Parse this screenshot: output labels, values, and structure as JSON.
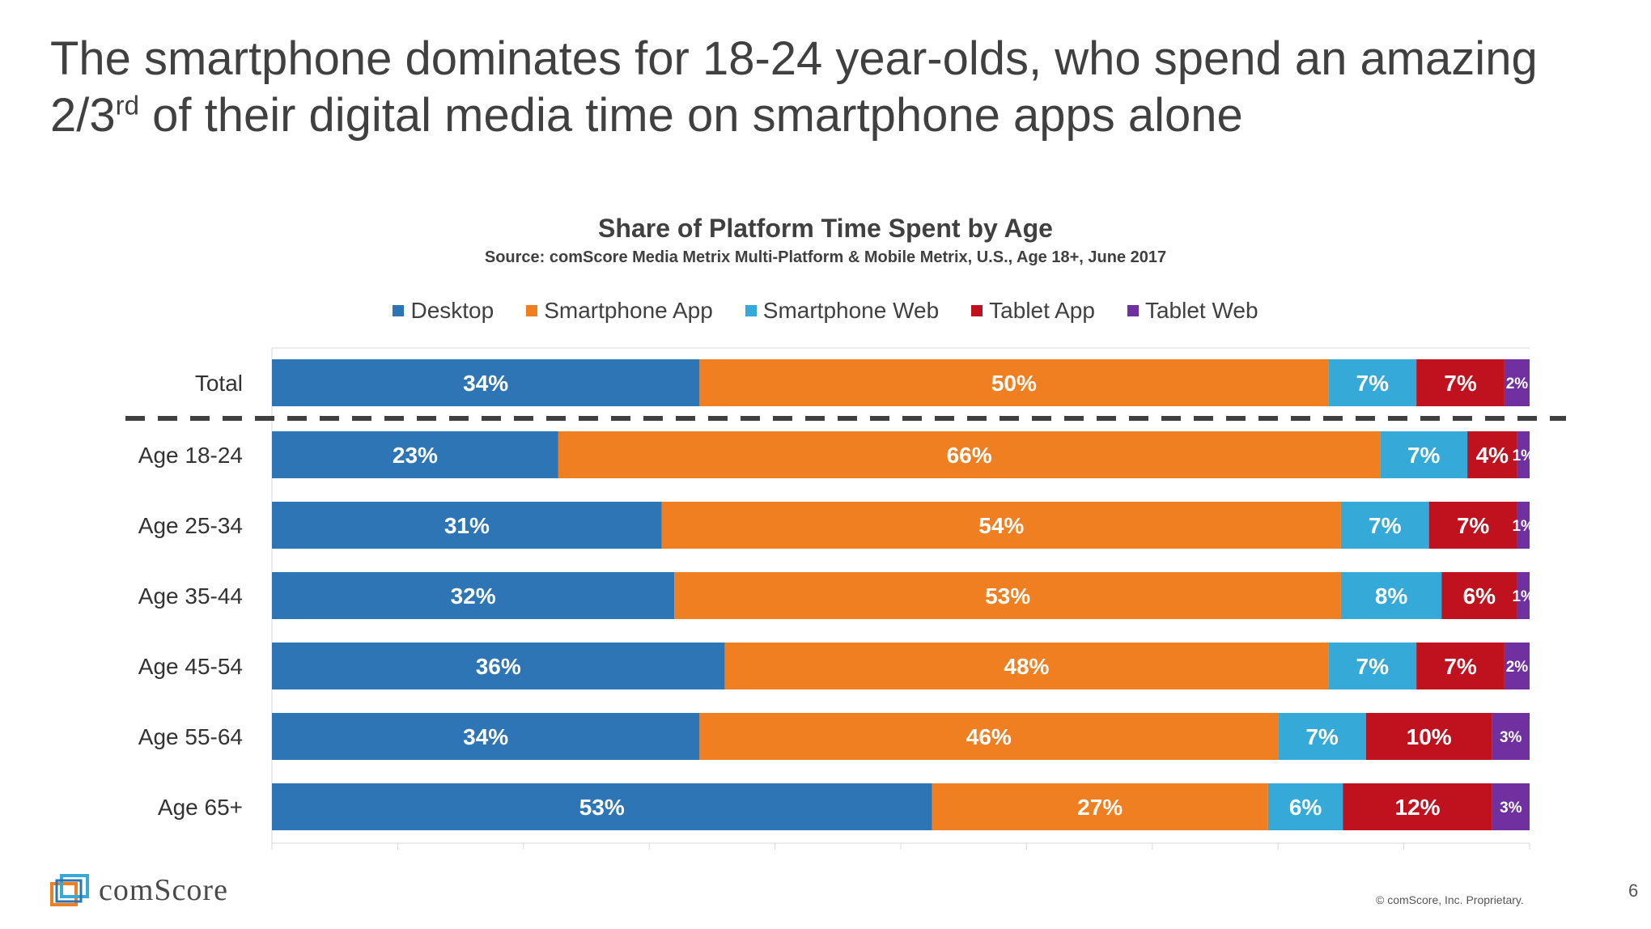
{
  "slide": {
    "headline_line1": "The smartphone dominates for 18-24 year-olds, who spend an amazing",
    "headline_line2_prefix": "2/3",
    "headline_line2_sup": "rd",
    "headline_line2_suffix": " of their digital media time on smartphone apps alone",
    "copyright": "© comScore, Inc. Proprietary.",
    "page_number": "6",
    "logo_text": "comScore"
  },
  "chart_data": {
    "type": "bar",
    "orientation": "horizontal",
    "stacked": true,
    "title": "Share of Platform Time Spent by Age",
    "subtitle": "Source: comScore Media Metrix Multi-Platform & Mobile Metrix, U.S., Age 18+, June 2017",
    "categories": [
      "Total",
      "Age 18-24",
      "Age 25-34",
      "Age 35-44",
      "Age 45-54",
      "Age 55-64",
      "Age 65+"
    ],
    "series": [
      {
        "name": "Desktop",
        "color": "#2E75B6",
        "values": [
          34,
          23,
          31,
          32,
          36,
          34,
          53
        ],
        "labels": [
          "34%",
          "23%",
          "31%",
          "32%",
          "36%",
          "34%",
          "53%"
        ]
      },
      {
        "name": "Smartphone App",
        "color": "#F07F22",
        "values": [
          50,
          66,
          54,
          53,
          48,
          46,
          27
        ],
        "labels": [
          "50%",
          "66%",
          "54%",
          "53%",
          "48%",
          "46%",
          "27%"
        ]
      },
      {
        "name": "Smartphone Web",
        "color": "#35AAD8",
        "values": [
          7,
          7,
          7,
          8,
          7,
          7,
          6
        ],
        "labels": [
          "7%",
          "7%",
          "7%",
          "8%",
          "7%",
          "7%",
          "6%"
        ]
      },
      {
        "name": "Tablet App",
        "color": "#C0121E",
        "values": [
          7,
          4,
          7,
          6,
          7,
          10,
          12
        ],
        "labels": [
          "7%",
          "4%",
          "7%",
          "6%",
          "7%",
          "10%",
          "12%"
        ]
      },
      {
        "name": "Tablet Web",
        "color": "#7030A0",
        "values": [
          2,
          1,
          1,
          1,
          2,
          3,
          3
        ],
        "labels": [
          "2%",
          "1%",
          "1%",
          "1%",
          "2%",
          "3%",
          "3%"
        ]
      }
    ],
    "xlim": [
      0,
      100
    ],
    "legend_position": "top",
    "separator_after": "Total"
  }
}
